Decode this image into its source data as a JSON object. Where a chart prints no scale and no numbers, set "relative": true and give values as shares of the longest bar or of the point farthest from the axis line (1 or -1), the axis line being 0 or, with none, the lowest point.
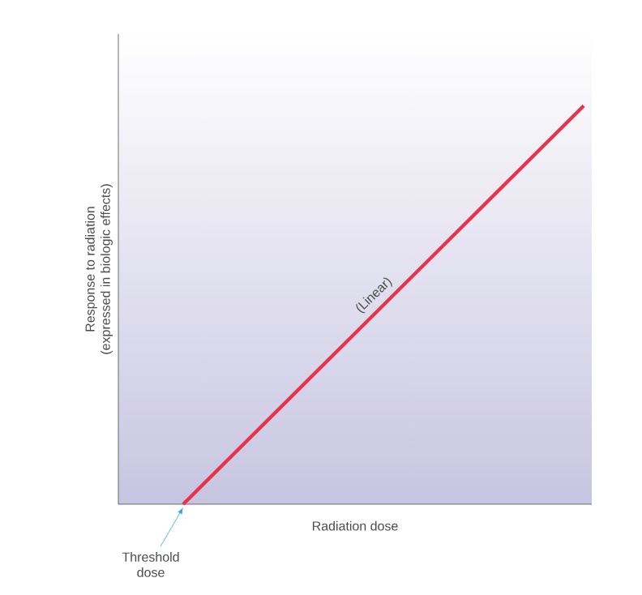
{
  "chart_data": {
    "type": "line",
    "xlabel": "Radiation dose",
    "ylabel": "Response to radiation\n(expressed in biologic effects)",
    "relative": true,
    "categories": [
      null,
      null
    ],
    "series": [
      {
        "color": "#e8344a",
        "values": [
          0,
          1
        ]
      }
    ],
    "annotations": [
      "(Linear)",
      "Threshold dose"
    ]
  }
}
